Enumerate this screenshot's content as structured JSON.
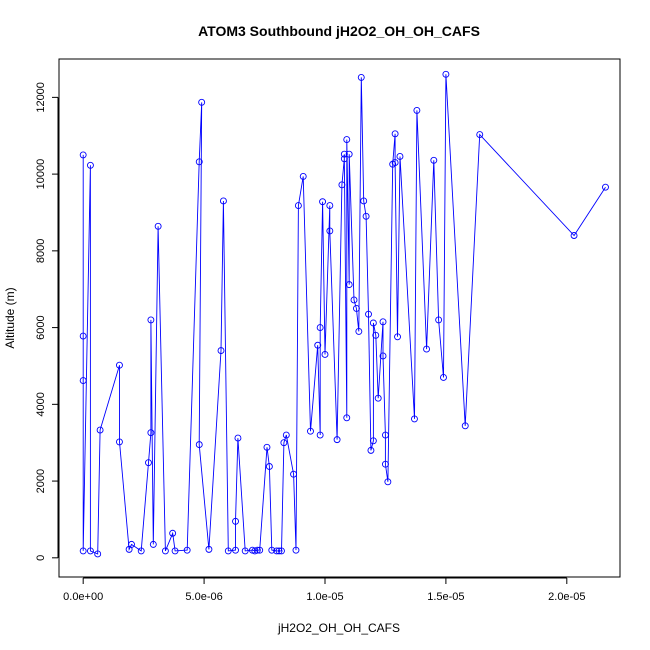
{
  "chart_data": {
    "type": "line",
    "title": "ATOM3 Southbound jH2O2_OH_OH_CAFS",
    "xlabel": "jH2O2_OH_OH_CAFS",
    "ylabel": "Altitude (m)",
    "xlim": [
      -1e-06,
      2.22e-05
    ],
    "ylim": [
      -500,
      13000
    ],
    "x_ticks": [
      0,
      5e-06,
      1e-05,
      1.5e-05,
      2e-05
    ],
    "x_tick_labels": [
      "0.0e+00",
      "5.0e-06",
      "1.0e-05",
      "1.5e-05",
      "2.0e-05"
    ],
    "y_ticks": [
      0,
      2000,
      4000,
      6000,
      8000,
      10000,
      12000
    ],
    "y_tick_labels": [
      "0",
      "2000",
      "4000",
      "6000",
      "8000",
      "10000",
      "12000"
    ],
    "grid": false,
    "legend": "none",
    "series": [
      {
        "marker": "open-circle",
        "points": [
          [
            0.0,
            10500
          ],
          [
            0.0,
            5780
          ],
          [
            0.0,
            4620
          ],
          [
            0.0,
            180
          ],
          [
            3e-07,
            10230
          ],
          [
            3e-07,
            180
          ],
          [
            6e-07,
            100
          ],
          [
            7e-07,
            3330
          ],
          [
            1.5e-06,
            5020
          ],
          [
            1.5e-06,
            3020
          ],
          [
            1.9e-06,
            220
          ],
          [
            2e-06,
            350
          ],
          [
            2.4e-06,
            180
          ],
          [
            2.7e-06,
            2480
          ],
          [
            2.8e-06,
            3260
          ],
          [
            2.8e-06,
            6200
          ],
          [
            2.9e-06,
            350
          ],
          [
            3.1e-06,
            8640
          ],
          [
            3.4e-06,
            180
          ],
          [
            3.7e-06,
            640
          ],
          [
            3.8e-06,
            180
          ],
          [
            4.3e-06,
            200
          ],
          [
            4.8e-06,
            10320
          ],
          [
            4.9e-06,
            11870
          ],
          [
            4.8e-06,
            2950
          ],
          [
            5.2e-06,
            220
          ],
          [
            5.7e-06,
            5400
          ],
          [
            5.8e-06,
            9300
          ],
          [
            6e-06,
            180
          ],
          [
            6.3e-06,
            200
          ],
          [
            6.3e-06,
            950
          ],
          [
            6.4e-06,
            3120
          ],
          [
            6.7e-06,
            180
          ],
          [
            7e-06,
            200
          ],
          [
            7.1e-06,
            180
          ],
          [
            7.2e-06,
            200
          ],
          [
            7.3e-06,
            200
          ],
          [
            7.6e-06,
            2880
          ],
          [
            7.7e-06,
            2380
          ],
          [
            7.8e-06,
            200
          ],
          [
            8e-06,
            180
          ],
          [
            8.1e-06,
            180
          ],
          [
            8.2e-06,
            180
          ],
          [
            8.3e-06,
            3000
          ],
          [
            8.4e-06,
            3200
          ],
          [
            8.7e-06,
            2180
          ],
          [
            8.8e-06,
            200
          ],
          [
            8.9e-06,
            9180
          ],
          [
            9.1e-06,
            9940
          ],
          [
            9.4e-06,
            3300
          ],
          [
            9.7e-06,
            5540
          ],
          [
            9.8e-06,
            3200
          ],
          [
            9.8e-06,
            6000
          ],
          [
            9.9e-06,
            9280
          ],
          [
            1e-05,
            5300
          ],
          [
            1.02e-05,
            9180
          ],
          [
            1.02e-05,
            8520
          ],
          [
            1.05e-05,
            3080
          ],
          [
            1.07e-05,
            9720
          ],
          [
            1.08e-05,
            10400
          ],
          [
            1.08e-05,
            10520
          ],
          [
            1.09e-05,
            3650
          ],
          [
            1.09e-05,
            10900
          ],
          [
            1.1e-05,
            7120
          ],
          [
            1.1e-05,
            10520
          ],
          [
            1.12e-05,
            6720
          ],
          [
            1.13e-05,
            6500
          ],
          [
            1.14e-05,
            5900
          ],
          [
            1.15e-05,
            12520
          ],
          [
            1.16e-05,
            9300
          ],
          [
            1.17e-05,
            8900
          ],
          [
            1.18e-05,
            6350
          ],
          [
            1.19e-05,
            2800
          ],
          [
            1.2e-05,
            3050
          ],
          [
            1.2e-05,
            6120
          ],
          [
            1.21e-05,
            5800
          ],
          [
            1.22e-05,
            4160
          ],
          [
            1.24e-05,
            6150
          ],
          [
            1.24e-05,
            5260
          ],
          [
            1.25e-05,
            3200
          ],
          [
            1.25e-05,
            2440
          ],
          [
            1.26e-05,
            1980
          ],
          [
            1.28e-05,
            10260
          ],
          [
            1.29e-05,
            11050
          ],
          [
            1.29e-05,
            10300
          ],
          [
            1.3e-05,
            5760
          ],
          [
            1.31e-05,
            10460
          ],
          [
            1.37e-05,
            3620
          ],
          [
            1.38e-05,
            11660
          ],
          [
            1.42e-05,
            5440
          ],
          [
            1.45e-05,
            10360
          ],
          [
            1.47e-05,
            6200
          ],
          [
            1.49e-05,
            4700
          ],
          [
            1.5e-05,
            12600
          ],
          [
            1.58e-05,
            3440
          ],
          [
            1.64e-05,
            11030
          ],
          [
            2.03e-05,
            8400
          ],
          [
            2.16e-05,
            9660
          ]
        ]
      }
    ]
  }
}
